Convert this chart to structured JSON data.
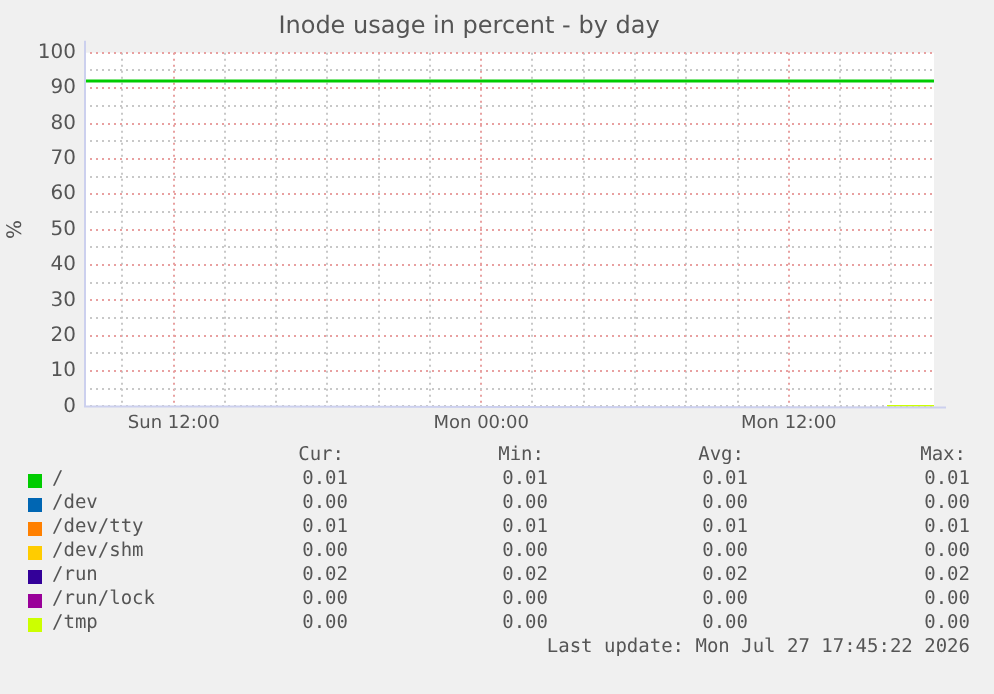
{
  "chart_data": {
    "type": "line",
    "title": "Inode usage in percent - by day",
    "ylabel": "%",
    "xlim": [
      "2026-07-26T08:30",
      "2026-07-27T17:40"
    ],
    "xticks": [
      {
        "value": "2026-07-26T10:00",
        "label": null
      },
      {
        "value": "2026-07-26T12:00",
        "label": "Sun 12:00"
      },
      {
        "value": "2026-07-26T14:00",
        "label": null
      },
      {
        "value": "2026-07-26T16:00",
        "label": null
      },
      {
        "value": "2026-07-26T18:00",
        "label": null
      },
      {
        "value": "2026-07-26T20:00",
        "label": null
      },
      {
        "value": "2026-07-26T22:00",
        "label": null
      },
      {
        "value": "2026-07-27T00:00",
        "label": "Mon 00:00"
      },
      {
        "value": "2026-07-27T02:00",
        "label": null
      },
      {
        "value": "2026-07-27T04:00",
        "label": null
      },
      {
        "value": "2026-07-27T06:00",
        "label": null
      },
      {
        "value": "2026-07-27T08:00",
        "label": null
      },
      {
        "value": "2026-07-27T10:00",
        "label": null
      },
      {
        "value": "2026-07-27T12:00",
        "label": "Mon 12:00"
      },
      {
        "value": "2026-07-27T14:00",
        "label": null
      },
      {
        "value": "2026-07-27T16:00",
        "label": null
      }
    ],
    "ylim": [
      0,
      100
    ],
    "yticks": [
      0,
      {
        "value": 5,
        "label": null
      },
      10,
      {
        "value": 15,
        "label": null
      },
      20,
      {
        "value": 25,
        "label": null
      },
      30,
      {
        "value": 35,
        "label": null
      },
      40,
      {
        "value": 45,
        "label": null
      },
      50,
      {
        "value": 55,
        "label": null
      },
      60,
      {
        "value": 65,
        "label": null
      },
      70,
      {
        "value": 75,
        "label": null
      },
      80,
      {
        "value": 85,
        "label": null
      },
      90,
      {
        "value": 95,
        "label": null
      },
      100
    ],
    "grid": true,
    "legend": "bottom",
    "marker": "none",
    "line_style": "solid",
    "series": [
      {
        "name": "/",
        "color": "#00cc00",
        "x": [
          "2026-07-26T08:30",
          "2026-07-27T17:40"
        ],
        "values": [
          92,
          92
        ]
      },
      {
        "name": "/dev",
        "color": "#0066b3"
      },
      {
        "name": "/dev/tty",
        "color": "#ff8000"
      },
      {
        "name": "/dev/shm",
        "color": "#ffcc00"
      },
      {
        "name": "/run",
        "color": "#330099"
      },
      {
        "name": "/run/lock",
        "color": "#990099"
      },
      {
        "name": "/tmp",
        "color": "#ccff00",
        "x": [
          "2026-07-27T15:50",
          "2026-07-27T17:40"
        ],
        "values": [
          0,
          0
        ]
      }
    ],
    "annotations": [
      "Cur:",
      "Min:",
      "Avg:",
      "Max:",
      "0.01",
      "0.01",
      "0.01",
      "0.01",
      "0.00",
      "0.00",
      "0.00",
      "0.00",
      "0.01",
      "0.01",
      "0.01",
      "0.01",
      "0.00",
      "0.00",
      "0.00",
      "0.00",
      "0.02",
      "0.02",
      "0.02",
      "0.02",
      "0.00",
      "0.00",
      "0.00",
      "0.00",
      "0.00",
      "0.00",
      "0.00",
      "0.00",
      "Last update: Mon Jul 27 17:45:22 2026"
    ]
  }
}
